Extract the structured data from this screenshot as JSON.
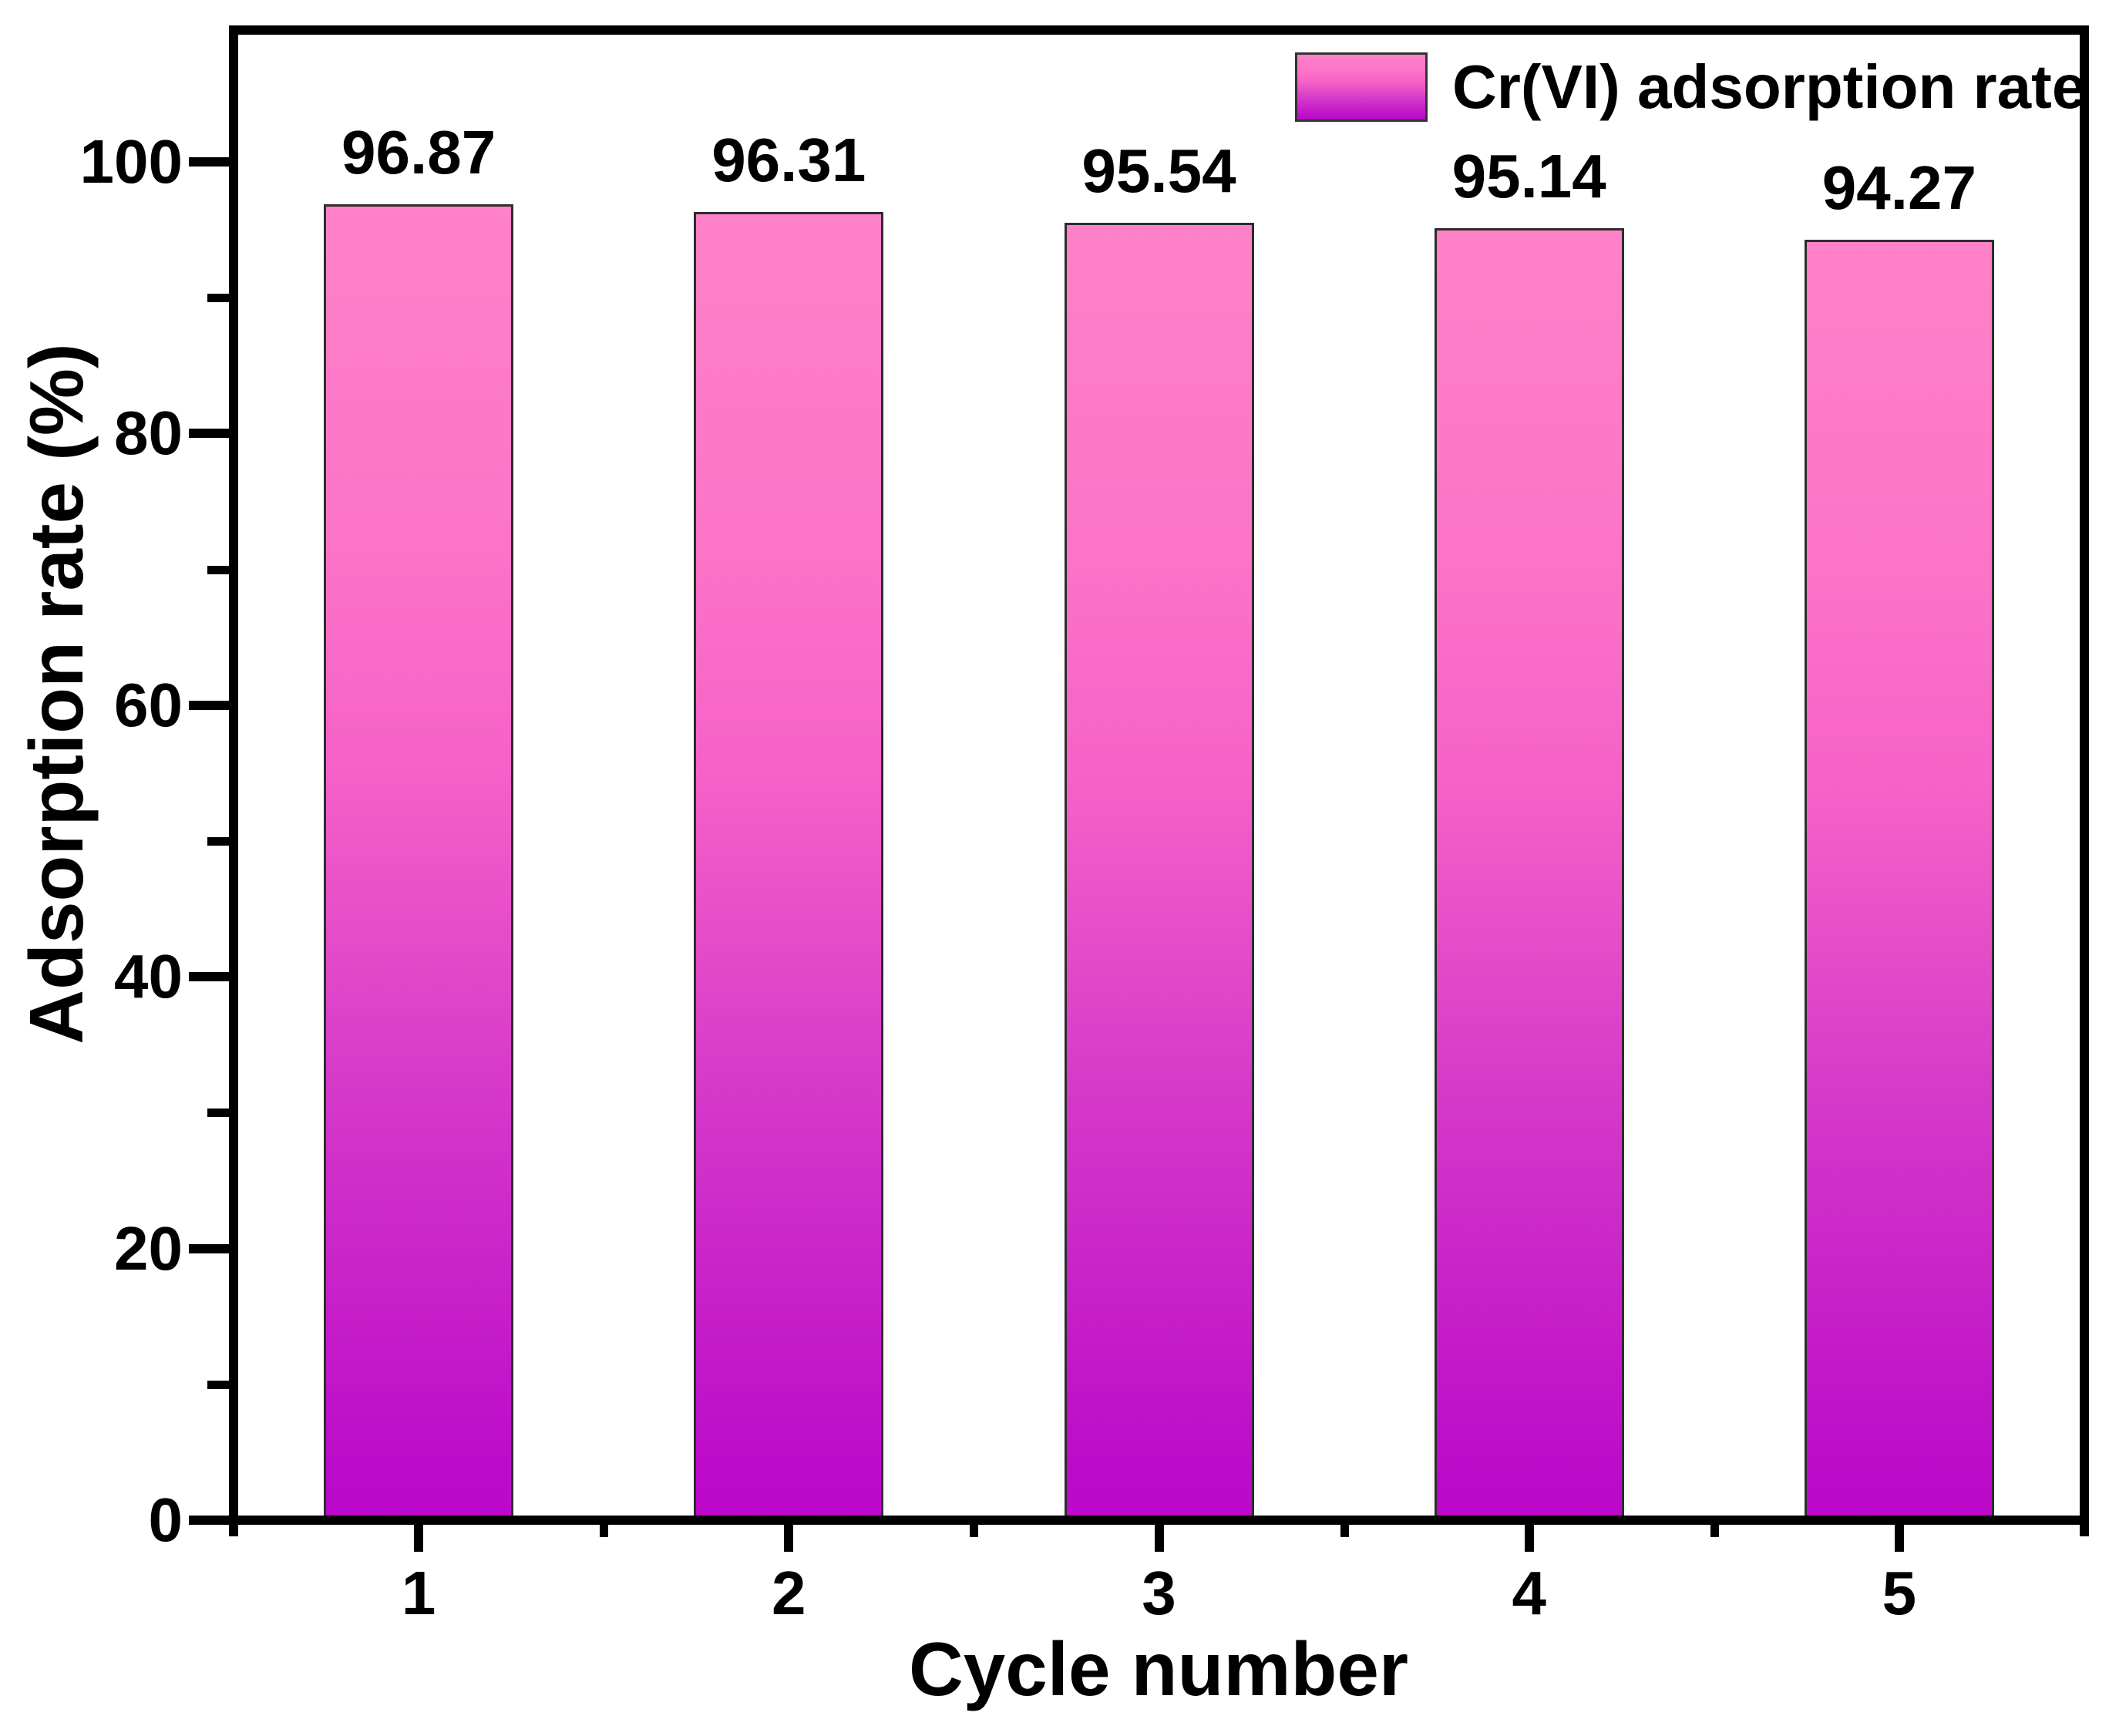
{
  "legend": {
    "label": "Cr(VI) adsorption rate"
  },
  "chart_data": {
    "type": "bar",
    "title": "",
    "xlabel": "Cycle number",
    "ylabel": "Adsorption rate (%)",
    "categories": [
      "1",
      "2",
      "3",
      "4",
      "5"
    ],
    "values": [
      96.87,
      96.31,
      95.54,
      95.14,
      94.27
    ],
    "bar_labels": [
      "96.87",
      "96.31",
      "95.54",
      "95.14",
      "94.27"
    ],
    "series": [
      {
        "name": "Cr(VI) adsorption rate",
        "values": [
          96.87,
          96.31,
          95.54,
          95.14,
          94.27
        ]
      }
    ],
    "ylim": [
      0,
      110
    ],
    "yticks_major": [
      0,
      20,
      40,
      60,
      80,
      100
    ],
    "yticks_minor": [
      10,
      30,
      50,
      70,
      90
    ],
    "grid": false,
    "legend_position": "top-right",
    "bar_gradient": [
      {
        "pos": 0,
        "color": "#ff81c8"
      },
      {
        "pos": 25,
        "color": "#fc74c7"
      },
      {
        "pos": 43,
        "color": "#f561c8"
      },
      {
        "pos": 66,
        "color": "#d63bc9"
      },
      {
        "pos": 95,
        "color": "#bd0dc9"
      },
      {
        "pos": 100,
        "color": "#bb08cb"
      }
    ],
    "bar_border_color": "#2d2d2d",
    "axis_color": "#000000",
    "text_color": "#000000",
    "background": "#ffffff"
  }
}
